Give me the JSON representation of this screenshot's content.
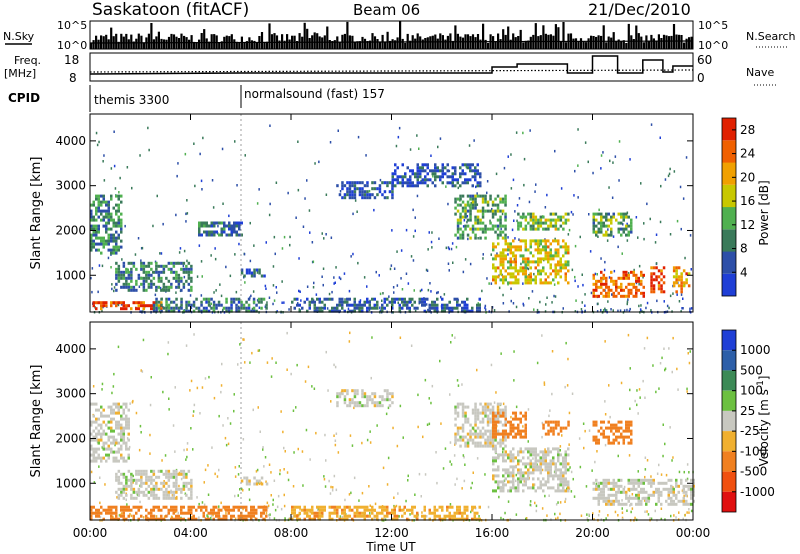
{
  "header": {
    "station": "Saskatoon (fitACF)",
    "beam": "Beam 06",
    "date": "21/Dec/2010"
  },
  "panels": {
    "nsky": {
      "label": "N.Sky",
      "tick_top": "10^5",
      "tick_bottom": "10^0",
      "right_label": "N.Search",
      "right_tick_top": "10^5",
      "right_tick_bottom": "10^0"
    },
    "freq": {
      "label_line1": "Freq.",
      "label_line2": "[MHz]",
      "tick_top": "18",
      "tick_bottom": "8",
      "right_label": "Nave",
      "right_tick_top": "60",
      "right_tick_bottom": "0"
    },
    "cpid": {
      "label": "CPID",
      "segments": [
        {
          "start_hour": 0,
          "end_hour": 6,
          "name": "themis 3300"
        },
        {
          "start_hour": 6,
          "end_hour": 24,
          "name": "normalsound (fast) 157"
        }
      ]
    }
  },
  "colors": {
    "power_scale": [
      "#1f3fd6",
      "#2d4fa8",
      "#3a7a5a",
      "#50b050",
      "#c8c800",
      "#f0a000",
      "#f06000",
      "#e02000"
    ],
    "velocity_scale": [
      "#1f3fd6",
      "#2d5fa8",
      "#3c8a56",
      "#6cc040",
      "#c8c8c0",
      "#f0b030",
      "#f08020",
      "#f05010",
      "#e01010"
    ]
  },
  "chart_data": [
    {
      "type": "heatmap",
      "title": "Power",
      "xlabel": "Time UT",
      "ylabel": "Slant Range [km]",
      "x_ticks": [
        "00:00",
        "04:00",
        "08:00",
        "12:00",
        "16:00",
        "20:00",
        "00:00"
      ],
      "xlim": [
        0,
        24
      ],
      "y_ticks": [
        1000,
        2000,
        3000,
        4000
      ],
      "ylim": [
        180,
        4600
      ],
      "colorbar": {
        "label": "Power [dB]",
        "ticks": [
          4,
          8,
          12,
          16,
          20,
          24,
          28
        ],
        "range": [
          0,
          30
        ]
      },
      "echo_regions": [
        {
          "t0": 0.0,
          "t1": 2.8,
          "r0": 220,
          "r1": 420,
          "level": 26
        },
        {
          "t0": 0.0,
          "t1": 1.2,
          "r0": 1500,
          "r1": 2800,
          "level": 10
        },
        {
          "t0": 1.0,
          "t1": 4.0,
          "r0": 650,
          "r1": 1300,
          "level": 9
        },
        {
          "t0": 2.5,
          "t1": 7.0,
          "r0": 220,
          "r1": 500,
          "level": 8
        },
        {
          "t0": 4.3,
          "t1": 6.0,
          "r0": 1900,
          "r1": 2200,
          "level": 7
        },
        {
          "t0": 6.0,
          "t1": 7.0,
          "r0": 1000,
          "r1": 1150,
          "level": 6
        },
        {
          "t0": 8.0,
          "t1": 15.5,
          "r0": 220,
          "r1": 500,
          "level": 6
        },
        {
          "t0": 9.8,
          "t1": 12.0,
          "r0": 2700,
          "r1": 3100,
          "level": 5
        },
        {
          "t0": 12.0,
          "t1": 15.5,
          "r0": 3000,
          "r1": 3500,
          "level": 5
        },
        {
          "t0": 14.5,
          "t1": 16.5,
          "r0": 1800,
          "r1": 2800,
          "level": 12
        },
        {
          "t0": 16.0,
          "t1": 19.0,
          "r0": 800,
          "r1": 1800,
          "level": 18
        },
        {
          "t0": 17.0,
          "t1": 19.0,
          "r0": 2000,
          "r1": 2400,
          "level": 14
        },
        {
          "t0": 20.0,
          "t1": 21.5,
          "r0": 1900,
          "r1": 2400,
          "level": 12
        },
        {
          "t0": 20.0,
          "t1": 22.0,
          "r0": 500,
          "r1": 1100,
          "level": 24
        },
        {
          "t0": 22.3,
          "t1": 22.8,
          "r0": 600,
          "r1": 1200,
          "level": 27
        },
        {
          "t0": 23.2,
          "t1": 23.8,
          "r0": 600,
          "r1": 1200,
          "level": 22
        }
      ]
    },
    {
      "type": "heatmap",
      "title": "Velocity",
      "xlabel": "Time UT",
      "ylabel": "Slant Range [km]",
      "x_ticks": [
        "00:00",
        "04:00",
        "08:00",
        "12:00",
        "16:00",
        "20:00",
        "00:00"
      ],
      "xlim": [
        0,
        24
      ],
      "y_ticks": [
        1000,
        2000,
        3000,
        4000
      ],
      "ylim": [
        180,
        4600
      ],
      "colorbar": {
        "label": "Velocity [m s^-1]",
        "ticks": [
          1000,
          500,
          100,
          25,
          -25,
          -100,
          -500,
          -1000
        ]
      },
      "echo_regions": [
        {
          "t0": 0.0,
          "t1": 1.5,
          "r0": 1500,
          "r1": 2800,
          "velocity": 0
        },
        {
          "t0": 0.0,
          "t1": 7.0,
          "r0": 220,
          "r1": 500,
          "velocity": -150
        },
        {
          "t0": 1.0,
          "t1": 4.0,
          "r0": 650,
          "r1": 1300,
          "velocity": 0
        },
        {
          "t0": 6.0,
          "t1": 7.0,
          "r0": 1000,
          "r1": 1150,
          "velocity": 0
        },
        {
          "t0": 8.0,
          "t1": 15.5,
          "r0": 220,
          "r1": 500,
          "velocity": -80
        },
        {
          "t0": 9.8,
          "t1": 12.0,
          "r0": 2700,
          "r1": 3100,
          "velocity": 0
        },
        {
          "t0": 14.5,
          "t1": 16.5,
          "r0": 1800,
          "r1": 2800,
          "velocity": 0
        },
        {
          "t0": 16.0,
          "t1": 17.3,
          "r0": 2000,
          "r1": 2600,
          "velocity": -300
        },
        {
          "t0": 16.0,
          "t1": 19.0,
          "r0": 800,
          "r1": 1800,
          "velocity": 0
        },
        {
          "t0": 18.0,
          "t1": 19.0,
          "r0": 2100,
          "r1": 2400,
          "velocity": -400
        },
        {
          "t0": 20.0,
          "t1": 21.5,
          "r0": 1900,
          "r1": 2400,
          "velocity": -250
        },
        {
          "t0": 20.0,
          "t1": 24.0,
          "r0": 500,
          "r1": 1100,
          "velocity": 0
        }
      ]
    }
  ]
}
